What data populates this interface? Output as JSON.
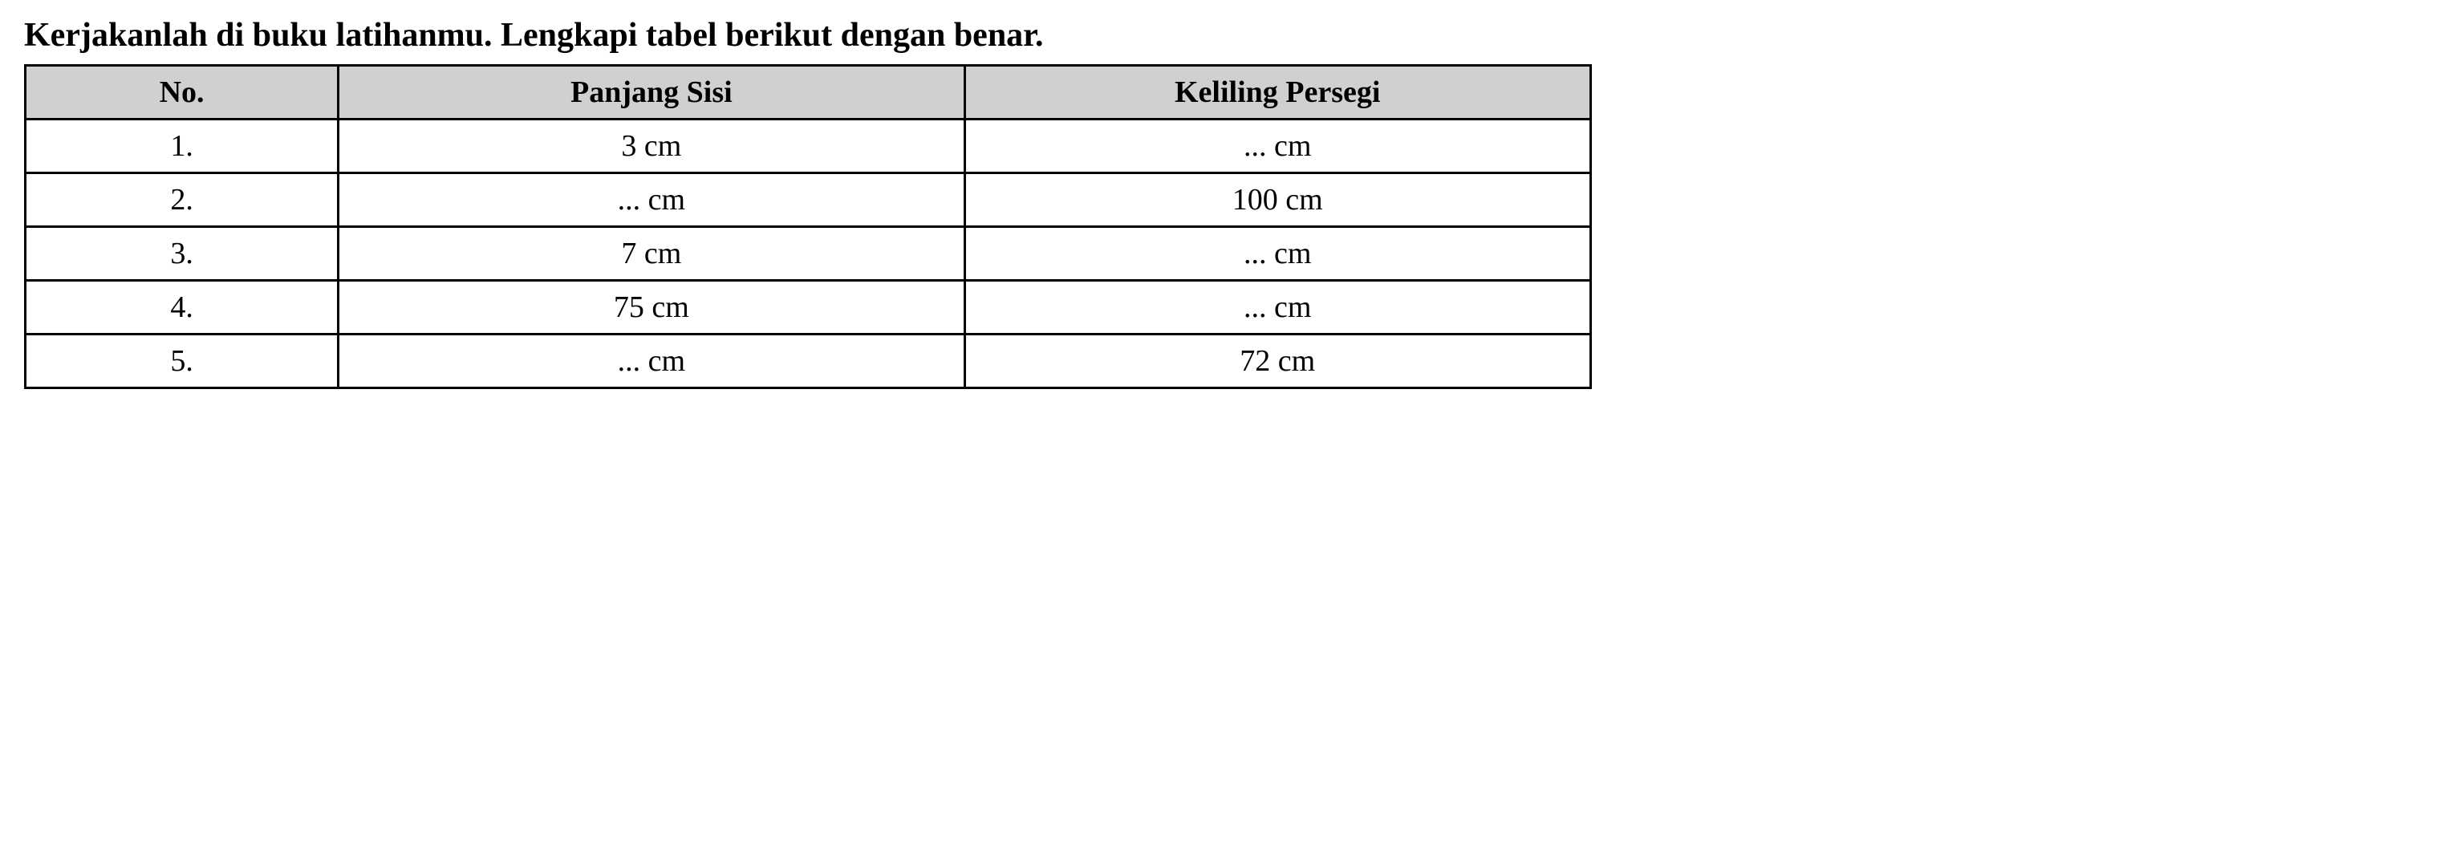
{
  "title": "Kerjakanlah di buku latihanmu. Lengkapi tabel berikut dengan benar.",
  "table": {
    "headers": {
      "no": "No.",
      "panjang_sisi": "Panjang Sisi",
      "keliling_persegi": "Keliling Persegi"
    },
    "rows": [
      {
        "no": "1.",
        "panjang_sisi": "3 cm",
        "keliling_persegi": "... cm"
      },
      {
        "no": "2.",
        "panjang_sisi": "... cm",
        "keliling_persegi": "100 cm"
      },
      {
        "no": "3.",
        "panjang_sisi": "7 cm",
        "keliling_persegi": "... cm"
      },
      {
        "no": "4.",
        "panjang_sisi": "75 cm",
        "keliling_persegi": "... cm"
      },
      {
        "no": "5.",
        "panjang_sisi": "... cm",
        "keliling_persegi": "72 cm"
      }
    ],
    "styling": {
      "border_color": "#000000",
      "border_width": 3,
      "header_bg": "#d0d0d0",
      "cell_bg": "#ffffff",
      "header_font_weight": "bold",
      "cell_font_weight": "normal",
      "font_family": "Times New Roman",
      "header_fontsize": 38,
      "cell_fontsize": 38,
      "title_fontsize": 42,
      "title_font_weight": "bold",
      "text_color": "#000000",
      "col_widths_pct": [
        20,
        40,
        40
      ],
      "table_width_pct": 65
    }
  }
}
